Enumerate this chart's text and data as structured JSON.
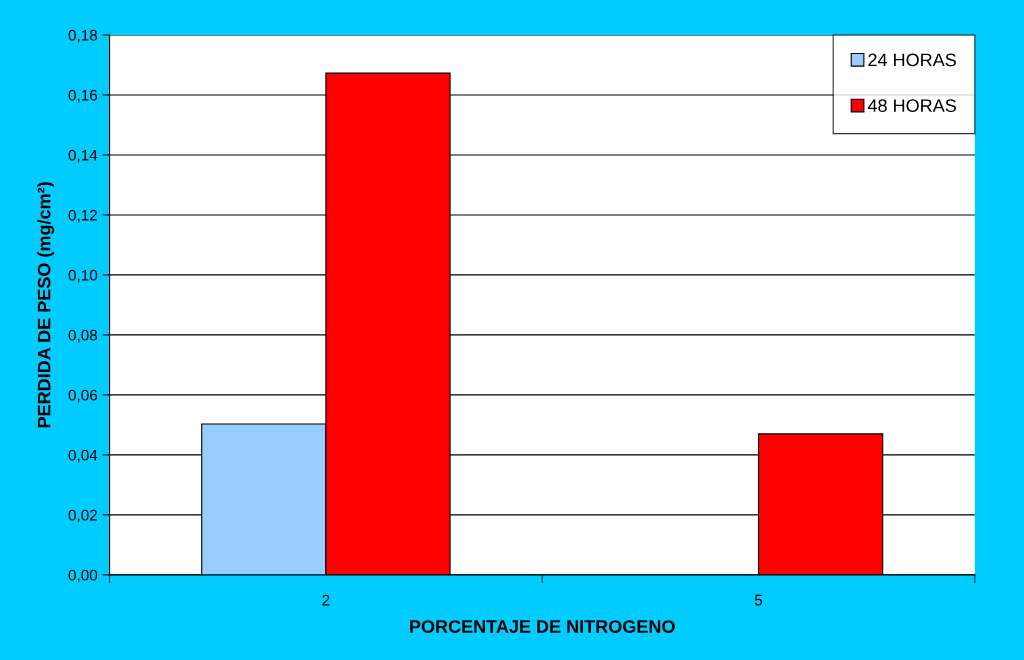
{
  "chart_data": {
    "type": "bar",
    "xlabel": "PORCENTAJE DE NITROGENO",
    "ylabel": "PERDIDA DE PESO (mg/cm²)",
    "categories": [
      "2",
      "5"
    ],
    "series": [
      {
        "name": "24 HORAS",
        "color": "#99ccff",
        "values": [
          0.0503,
          0
        ]
      },
      {
        "name": "48 HORAS",
        "color": "#ff0000",
        "values": [
          0.1673,
          0.047
        ]
      }
    ],
    "ylim": [
      0,
      0.18
    ],
    "yticks": [
      {
        "value": 0,
        "label": "0,00"
      },
      {
        "value": 0.02,
        "label": "0,02"
      },
      {
        "value": 0.04,
        "label": "0,04"
      },
      {
        "value": 0.06,
        "label": "0,06"
      },
      {
        "value": 0.08,
        "label": "0,08"
      },
      {
        "value": 0.1,
        "label": "0,10"
      },
      {
        "value": 0.12,
        "label": "0,12"
      },
      {
        "value": 0.14,
        "label": "0,14"
      },
      {
        "value": 0.16,
        "label": "0,16"
      },
      {
        "value": 0.18,
        "label": "0,18"
      }
    ],
    "grid": "y",
    "legend": "top right"
  }
}
